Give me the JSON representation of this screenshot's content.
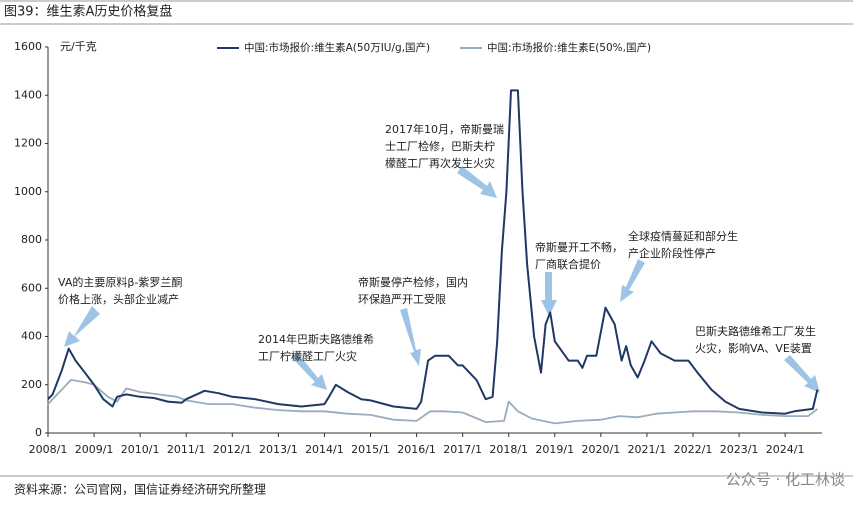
{
  "header": {
    "title": "图39：维生素A历史价格复盘"
  },
  "footer": {
    "source": "资料来源：公司官网，国信证券经济研究所整理",
    "watermark": "公众号 · 化工林谈"
  },
  "chart_data": {
    "type": "line",
    "y_unit": "元/千克",
    "xlim": [
      2008,
      2024.8
    ],
    "ylim": [
      0,
      1600
    ],
    "yticks": [
      0,
      200,
      400,
      600,
      800,
      1000,
      1200,
      1400,
      1600
    ],
    "xticks": [
      {
        "value": 2008,
        "label": "2008/1"
      },
      {
        "value": 2009,
        "label": "2009/1"
      },
      {
        "value": 2010,
        "label": "2010/1"
      },
      {
        "value": 2011,
        "label": "2011/1"
      },
      {
        "value": 2012,
        "label": "2012/1"
      },
      {
        "value": 2013,
        "label": "2013/1"
      },
      {
        "value": 2014,
        "label": "2014/1"
      },
      {
        "value": 2015,
        "label": "2015/1"
      },
      {
        "value": 2016,
        "label": "2016/1"
      },
      {
        "value": 2017,
        "label": "2017/1"
      },
      {
        "value": 2018,
        "label": "2018/1"
      },
      {
        "value": 2019,
        "label": "2019/1"
      },
      {
        "value": 2020,
        "label": "2020/1"
      },
      {
        "value": 2021,
        "label": "2021/1"
      },
      {
        "value": 2022,
        "label": "2022/1"
      },
      {
        "value": 2023,
        "label": "2023/1"
      },
      {
        "value": 2024,
        "label": "2024/1"
      }
    ],
    "grid": false,
    "series": [
      {
        "name": "中国:市场报价:维生素A(50万IU/g,国产)",
        "color": "#1f3864",
        "x": [
          2008.0,
          2008.1,
          2008.3,
          2008.45,
          2008.6,
          2008.8,
          2009.0,
          2009.2,
          2009.4,
          2009.5,
          2009.7,
          2010.0,
          2010.3,
          2010.6,
          2010.9,
          2011.0,
          2011.4,
          2011.7,
          2012.0,
          2012.5,
          2013.0,
          2013.5,
          2014.0,
          2014.1,
          2014.25,
          2014.5,
          2014.8,
          2015.0,
          2015.5,
          2016.0,
          2016.1,
          2016.25,
          2016.4,
          2016.7,
          2016.9,
          2017.0,
          2017.3,
          2017.5,
          2017.65,
          2017.75,
          2017.85,
          2017.95,
          2018.05,
          2018.2,
          2018.3,
          2018.4,
          2018.55,
          2018.7,
          2018.8,
          2018.9,
          2019.0,
          2019.3,
          2019.5,
          2019.6,
          2019.7,
          2019.9,
          2020.1,
          2020.3,
          2020.45,
          2020.55,
          2020.65,
          2020.8,
          2020.95,
          2021.1,
          2021.3,
          2021.6,
          2021.9,
          2022.1,
          2022.4,
          2022.7,
          2023.0,
          2023.5,
          2024.0,
          2024.2,
          2024.6,
          2024.7
        ],
        "values": [
          140,
          160,
          260,
          350,
          300,
          250,
          200,
          140,
          110,
          150,
          160,
          150,
          145,
          130,
          125,
          140,
          175,
          165,
          150,
          140,
          120,
          110,
          120,
          150,
          200,
          170,
          140,
          135,
          110,
          100,
          130,
          300,
          320,
          320,
          280,
          280,
          220,
          140,
          150,
          380,
          750,
          1000,
          1420,
          1420,
          1000,
          700,
          400,
          250,
          450,
          500,
          380,
          300,
          300,
          270,
          320,
          320,
          520,
          450,
          300,
          360,
          280,
          230,
          300,
          380,
          330,
          300,
          300,
          250,
          180,
          130,
          100,
          85,
          80,
          90,
          100,
          180
        ]
      },
      {
        "name": "中国:市场报价:维生素E(50%,国产)",
        "color": "#9aabbd",
        "x": [
          2008.0,
          2008.3,
          2008.5,
          2008.8,
          2009.0,
          2009.3,
          2009.5,
          2009.7,
          2010.0,
          2010.4,
          2010.8,
          2011.0,
          2011.5,
          2012.0,
          2012.5,
          2013.0,
          2013.5,
          2014.0,
          2014.5,
          2015.0,
          2015.5,
          2016.0,
          2016.3,
          2016.6,
          2017.0,
          2017.5,
          2017.9,
          2018.0,
          2018.2,
          2018.5,
          2019.0,
          2019.5,
          2020.0,
          2020.4,
          2020.8,
          2021.2,
          2021.6,
          2022.0,
          2022.5,
          2023.0,
          2023.5,
          2024.0,
          2024.5,
          2024.7
        ],
        "values": [
          120,
          180,
          220,
          210,
          200,
          150,
          130,
          185,
          170,
          160,
          150,
          135,
          120,
          120,
          105,
          95,
          90,
          90,
          80,
          75,
          55,
          50,
          90,
          90,
          85,
          45,
          50,
          130,
          90,
          60,
          40,
          50,
          55,
          70,
          65,
          80,
          85,
          90,
          90,
          85,
          75,
          70,
          70,
          100
        ]
      }
    ],
    "annotations": [
      {
        "lines": [
          "VA的主要原料β-紫罗兰酮",
          "价格上涨，头部企业减产"
        ]
      },
      {
        "lines": [
          "2014年巴斯夫路德维希",
          "工厂柠檬醛工厂火灾"
        ]
      },
      {
        "lines": [
          "帝斯曼停产检修，国内",
          "环保趋严开工受限"
        ]
      },
      {
        "lines": [
          "2017年10月，帝斯曼瑞",
          "士工厂检修，巴斯夫柠",
          "檬醛工厂再次发生火灾"
        ]
      },
      {
        "lines": [
          "帝斯曼开工不畅，",
          "厂商联合提价"
        ]
      },
      {
        "lines": [
          "全球疫情蔓延和部分生",
          "产企业阶段性停产"
        ]
      },
      {
        "lines": [
          "巴斯夫路德维希工厂发生",
          "火灾，影响VA、VE装置"
        ]
      }
    ]
  }
}
